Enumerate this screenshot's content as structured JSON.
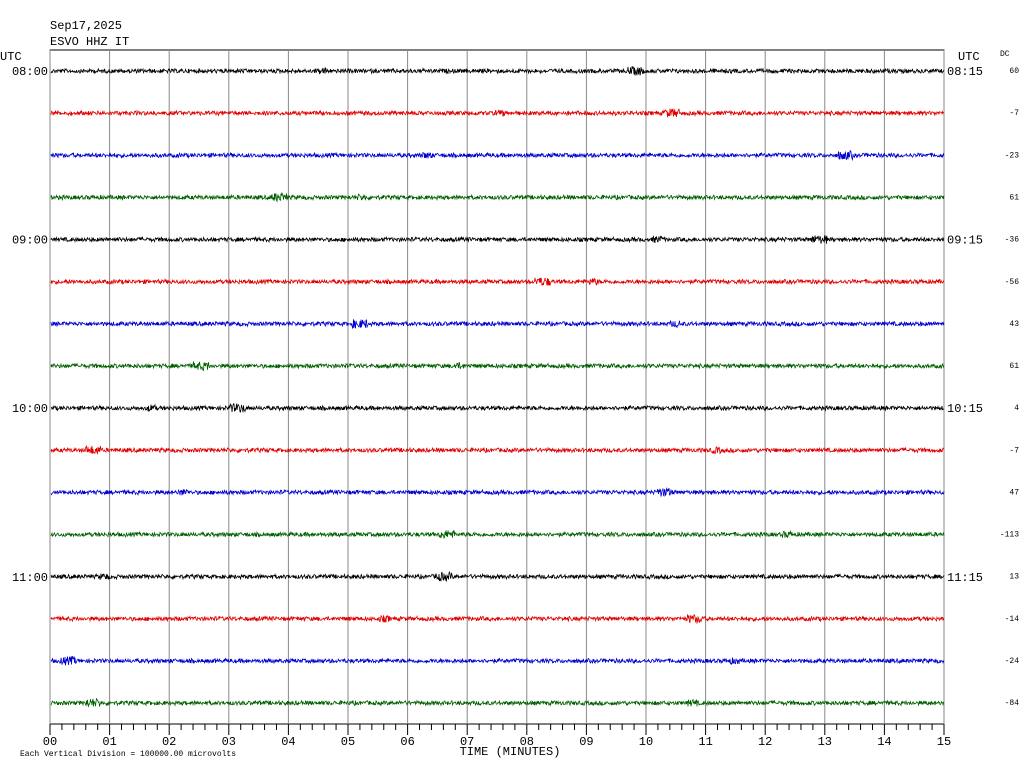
{
  "chart_data": {
    "type": "helicorder",
    "title": "Sep17,2025",
    "subtitle": "ESVO HHZ IT",
    "left_axis_label": "UTC",
    "right_axis_label": "UTC",
    "dc_label": "DC",
    "row_labels_left": [
      "08:00",
      null,
      null,
      null,
      "09:00",
      null,
      null,
      null,
      "10:00",
      null,
      null,
      null,
      "11:00",
      null,
      null,
      null
    ],
    "row_labels_right": [
      "08:15",
      null,
      null,
      null,
      "09:15",
      null,
      null,
      null,
      "10:15",
      null,
      null,
      null,
      "11:15",
      null,
      null,
      null
    ],
    "dc_offsets": [
      60,
      -7,
      -23,
      61,
      -36,
      -56,
      43,
      61,
      4,
      -7,
      47,
      -113,
      13,
      -14,
      -24,
      -84
    ],
    "trace_colors": [
      "#000000",
      "#e00000",
      "#0000d0",
      "#006000"
    ],
    "xlabel": "TIME (MINUTES)",
    "xlim": [
      0,
      15
    ],
    "xticks": [
      {
        "value": 0,
        "label": "00"
      },
      {
        "value": 1,
        "label": "01"
      },
      {
        "value": 2,
        "label": "02"
      },
      {
        "value": 3,
        "label": "03"
      },
      {
        "value": 4,
        "label": "04"
      },
      {
        "value": 5,
        "label": "05"
      },
      {
        "value": 6,
        "label": "06"
      },
      {
        "value": 7,
        "label": "07"
      },
      {
        "value": 8,
        "label": "08"
      },
      {
        "value": 9,
        "label": "09"
      },
      {
        "value": 10,
        "label": "10"
      },
      {
        "value": 11,
        "label": "11"
      },
      {
        "value": 12,
        "label": "12"
      },
      {
        "value": 13,
        "label": "13"
      },
      {
        "value": 14,
        "label": "14"
      },
      {
        "value": 15,
        "label": "15"
      }
    ],
    "grid": true,
    "footnote": "Each Vertical Division = 100000.00 microvolts"
  }
}
